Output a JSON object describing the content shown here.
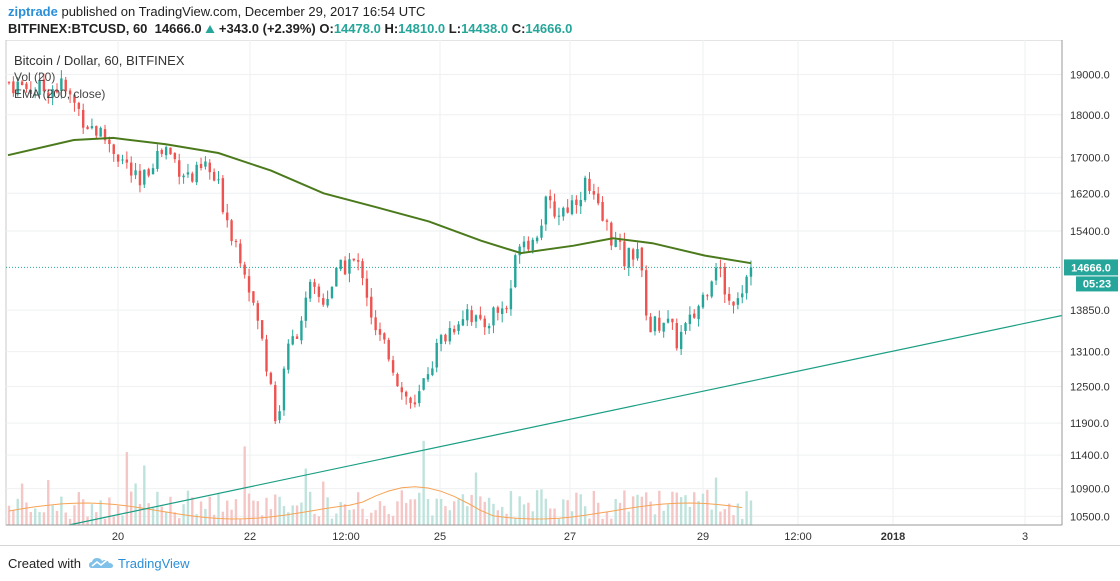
{
  "header": {
    "author": "ziptrade",
    "published_text": "published on TradingView.com, December 29, 2017 16:54 UTC",
    "symbol": "BITFINEX:BTCUSD, 60",
    "last": "14666.0",
    "change_icon": "triangle-up-icon",
    "change": "+343.0 (+2.39%)",
    "o_label": "O:",
    "o": "14478.0",
    "h_label": "H:",
    "h": "14810.0",
    "l_label": "L:",
    "l": "14438.0",
    "c_label": "C:",
    "c": "14666.0"
  },
  "legend": {
    "title": "Bitcoin / Dollar, 60, BITFINEX",
    "vol": "Vol (20)",
    "ema": "EMA (200, close)"
  },
  "footer": {
    "created_with": "Created with",
    "brand": "TradingView",
    "logo_icon": "tradingview-cloud-icon"
  },
  "colors": {
    "up": "#26a69a",
    "down": "#ef5350",
    "ema": "#4b7a1c",
    "trend": "#1a9e84",
    "vol_ma": "#f7a354",
    "price_tag": "#26a69a"
  },
  "chart_data": {
    "type": "candlestick",
    "symbol": "BTCUSD",
    "interval": "60",
    "exchange": "BITFINEX",
    "y_ticks": [
      "19000.0",
      "18000.0",
      "17000.0",
      "16200.0",
      "15400.0",
      "14666.0",
      "13850.0",
      "13100.0",
      "12500.0",
      "11900.0",
      "11400.0",
      "10900.0",
      "10500.0"
    ],
    "y_scale": "log",
    "ylim": [
      10380,
      19900
    ],
    "x_ticks": [
      "20",
      "22",
      "12:00",
      "25",
      "27",
      "29",
      "12:00",
      "2018",
      "3"
    ],
    "current_price": "14666.0",
    "countdown": "05:23",
    "price_path": [
      [
        0,
        18800
      ],
      [
        4,
        18600
      ],
      [
        8,
        18700
      ],
      [
        12,
        17800
      ],
      [
        15,
        17400
      ],
      [
        18,
        16800
      ],
      [
        20,
        16300
      ],
      [
        22,
        17000
      ],
      [
        24,
        17200
      ],
      [
        26,
        16800
      ],
      [
        28,
        16500
      ],
      [
        30,
        16800
      ],
      [
        32,
        16300
      ],
      [
        34,
        15400
      ],
      [
        36,
        14700
      ],
      [
        38,
        13600
      ],
      [
        40,
        12600
      ],
      [
        41,
        11700
      ],
      [
        42,
        12900
      ],
      [
        44,
        13500
      ],
      [
        46,
        14200
      ],
      [
        48,
        14000
      ],
      [
        50,
        14500
      ],
      [
        52,
        14800
      ],
      [
        54,
        14600
      ],
      [
        56,
        13400
      ],
      [
        58,
        13100
      ],
      [
        60,
        12400
      ],
      [
        61,
        12300
      ],
      [
        62,
        12100
      ],
      [
        64,
        12800
      ],
      [
        66,
        13300
      ],
      [
        68,
        13600
      ],
      [
        70,
        13900
      ],
      [
        72,
        13500
      ],
      [
        74,
        13800
      ],
      [
        76,
        13900
      ],
      [
        77,
        14500
      ],
      [
        78,
        15300
      ],
      [
        80,
        15200
      ],
      [
        82,
        15900
      ],
      [
        84,
        15800
      ],
      [
        86,
        16000
      ],
      [
        88,
        16400
      ],
      [
        90,
        15800
      ],
      [
        92,
        15300
      ],
      [
        94,
        14800
      ],
      [
        96,
        15100
      ],
      [
        97,
        14100
      ],
      [
        98,
        13500
      ],
      [
        100,
        13700
      ],
      [
        102,
        13300
      ],
      [
        104,
        13600
      ],
      [
        106,
        14100
      ],
      [
        108,
        14800
      ],
      [
        110,
        14000
      ],
      [
        112,
        14300
      ],
      [
        113,
        14666
      ]
    ],
    "ema_200": [
      [
        0,
        17050
      ],
      [
        10,
        17400
      ],
      [
        16,
        17450
      ],
      [
        24,
        17300
      ],
      [
        32,
        17100
      ],
      [
        40,
        16700
      ],
      [
        48,
        16200
      ],
      [
        56,
        15900
      ],
      [
        64,
        15600
      ],
      [
        72,
        15200
      ],
      [
        78,
        14950
      ],
      [
        86,
        15100
      ],
      [
        92,
        15250
      ],
      [
        98,
        15150
      ],
      [
        106,
        14900
      ],
      [
        113,
        14750
      ]
    ],
    "trendline": {
      "start": [
        5,
        10380
      ],
      "end": [
        160,
        13750
      ]
    },
    "volume_scale_max": 1,
    "volume_note": "relative volume bars with 20-period moving average"
  }
}
